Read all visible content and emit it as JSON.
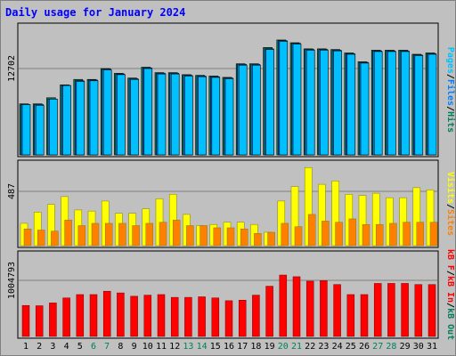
{
  "title": "Daily usage for January 2024",
  "colors": {
    "background": "#c0c0c0",
    "title": "#0000ff",
    "axis_label": "#000000",
    "weekend_day": "#00805c",
    "pages": "#00c0ff",
    "files": "#0080ff",
    "hits": "#00805c",
    "visits": "#ffff00",
    "sites": "#ff8000",
    "kb_in": "#ff0000",
    "kb_out": "#00805c",
    "kb_f": "#ff0000"
  },
  "right_labels": {
    "panel1": [
      "Pages",
      "Files",
      "Hits"
    ],
    "panel2": [
      "Visits",
      "Sites"
    ],
    "panel3": [
      "kB F",
      "kB In",
      "kB Out"
    ]
  },
  "separator": "/",
  "chart_data": {
    "type": "bar",
    "categories": [
      "1",
      "2",
      "3",
      "4",
      "5",
      "6",
      "7",
      "8",
      "9",
      "10",
      "11",
      "12",
      "13",
      "14",
      "15",
      "16",
      "17",
      "18",
      "19",
      "20",
      "21",
      "22",
      "23",
      "24",
      "25",
      "26",
      "27",
      "28",
      "29",
      "30",
      "31"
    ],
    "weekend_days": [
      "6",
      "7",
      "13",
      "14",
      "20",
      "21",
      "27",
      "28"
    ],
    "panels": [
      {
        "name": "hits-panel",
        "ytick_label": "12702",
        "ytick_value": 12702,
        "series": [
          {
            "name": "Hits",
            "values": [
              7500,
              7500,
              8400,
              10300,
              11100,
              11100,
              12700,
              12000,
              11300,
              12900,
              12100,
              12100,
              11800,
              11700,
              11600,
              11400,
              13400,
              13400,
              15800,
              16900,
              16500,
              15600,
              15600,
              15500,
              15000,
              13700,
              15400,
              15400,
              15400,
              14800,
              15000
            ]
          },
          {
            "name": "Files",
            "values": [
              7400,
              7400,
              8200,
              10200,
              10900,
              11000,
              12600,
              11900,
              11200,
              12800,
              12000,
              12000,
              11700,
              11600,
              11500,
              11300,
              13300,
              13300,
              15600,
              16800,
              16400,
              15500,
              15500,
              15400,
              14900,
              13600,
              15300,
              15300,
              15300,
              14700,
              14900
            ]
          },
          {
            "name": "Pages",
            "values": [
              7400,
              7300,
              8200,
              10200,
              10800,
              10900,
              12500,
              11800,
              11100,
              12700,
              11900,
              11900,
              11600,
              11500,
              11400,
              11200,
              13200,
              13200,
              15500,
              16700,
              16300,
              15400,
              15400,
              15300,
              14800,
              13500,
              15200,
              15200,
              15200,
              14600,
              14800
            ]
          }
        ]
      },
      {
        "name": "visits-panel",
        "ytick_label": "487",
        "ytick_value": 487,
        "series": [
          {
            "name": "Visits",
            "values": [
              200,
              300,
              370,
              440,
              320,
              310,
              400,
              290,
              290,
              330,
              420,
              460,
              280,
              180,
              190,
              210,
              210,
              190,
              120,
              400,
              530,
              700,
              550,
              580,
              460,
              450,
              470,
              430,
              430,
              520,
              500
            ]
          },
          {
            "name": "Sites",
            "values": [
              150,
              140,
              130,
              230,
              180,
              200,
              200,
              200,
              180,
              200,
              210,
              230,
              180,
              180,
              160,
              160,
              150,
              110,
              120,
              200,
              170,
              280,
              220,
              210,
              240,
              190,
              190,
              200,
              210,
              210,
              210
            ]
          }
        ]
      },
      {
        "name": "kbytes-panel",
        "ytick_label": "1004793",
        "ytick_value": 1004793,
        "series": [
          {
            "name": "kB F",
            "values": [
              555000,
              550000,
              600000,
              690000,
              750000,
              750000,
              810000,
              780000,
              720000,
              740000,
              750000,
              700000,
              700000,
              710000,
              690000,
              640000,
              650000,
              740000,
              900000,
              1100000,
              1070000,
              990000,
              1000000,
              930000,
              750000,
              750000,
              950000,
              950000,
              950000,
              930000,
              930000
            ]
          }
        ]
      }
    ]
  }
}
